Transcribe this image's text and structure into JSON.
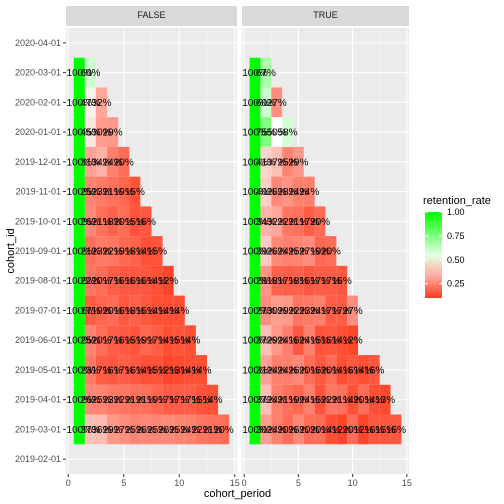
{
  "chart_data": {
    "type": "heatmap",
    "xlabel": "cohort_period",
    "ylabel": "cohort_id",
    "x_ticks": [
      "0",
      "5",
      "10",
      "15"
    ],
    "xlim": [
      0,
      15
    ],
    "cohorts": [
      "2019-02-01",
      "2019-03-01",
      "2019-04-01",
      "2019-05-01",
      "2019-06-01",
      "2019-07-01",
      "2019-08-01",
      "2019-09-01",
      "2019-10-01",
      "2019-11-01",
      "2019-12-01",
      "2020-01-01",
      "2020-02-01",
      "2020-03-01",
      "2020-04-01"
    ],
    "legend": {
      "title": "retention_rate",
      "ticks": [
        "1.00",
        "0.75",
        "0.50",
        "0.25"
      ],
      "low_color": "#ff3b1f",
      "mid_color": "#ffffff",
      "high_color": "#00ff00",
      "midpoint": 0.5,
      "range": [
        0.1,
        1.0
      ]
    },
    "panels": [
      {
        "name": "FALSE",
        "rows": [
          {
            "cohort": "2020-03-01",
            "values": [
              1.0,
              0.6
            ],
            "labels": [
              "100%",
              "60%"
            ]
          },
          {
            "cohort": "2020-02-01",
            "values": [
              1.0,
              0.47,
              0.32
            ],
            "labels": [
              "100%",
              "47%",
              "32%"
            ]
          },
          {
            "cohort": "2020-01-01",
            "values": [
              1.0,
              0.45,
              0.3,
              0.29
            ],
            "labels": [
              "100%",
              "45%",
              "30%",
              "29%"
            ]
          },
          {
            "cohort": "2019-12-01",
            "values": [
              1.0,
              0.31,
              0.34,
              0.24,
              0.2
            ],
            "labels": [
              "100%",
              "31%",
              "34%",
              "24%",
              "20%"
            ]
          },
          {
            "cohort": "2019-11-01",
            "values": [
              1.0,
              0.25,
              0.23,
              0.21,
              0.19,
              0.15
            ],
            "labels": [
              "100%",
              "25%",
              "23%",
              "21%",
              "19%",
              "15%"
            ]
          },
          {
            "cohort": "2019-10-01",
            "values": [
              1.0,
              0.26,
              0.21,
              0.18,
              0.2,
              0.15,
              0.16
            ],
            "labels": [
              "100%",
              "26%",
              "21%",
              "18%",
              "20%",
              "15%",
              "16%"
            ]
          },
          {
            "cohort": "2019-09-01",
            "values": [
              1.0,
              0.21,
              0.23,
              0.22,
              0.19,
              0.18,
              0.14,
              0.15
            ],
            "labels": [
              "100%",
              "21%",
              "23%",
              "22%",
              "19%",
              "18%",
              "14%",
              "15%"
            ]
          },
          {
            "cohort": "2019-08-01",
            "values": [
              1.0,
              0.22,
              0.2,
              0.17,
              0.16,
              0.16,
              0.16,
              0.14,
              0.12
            ],
            "labels": [
              "100%",
              "22%",
              "20%",
              "17%",
              "16%",
              "16%",
              "16%",
              "14%",
              "12%"
            ]
          },
          {
            "cohort": "2019-07-01",
            "values": [
              1.0,
              0.17,
              0.19,
              0.2,
              0.16,
              0.18,
              0.16,
              0.14,
              0.14,
              0.14
            ],
            "labels": [
              "100%",
              "17%",
              "19%",
              "20%",
              "16%",
              "18%",
              "16%",
              "14%",
              "14%",
              "14%"
            ]
          },
          {
            "cohort": "2019-06-01",
            "values": [
              1.0,
              0.25,
              0.2,
              0.17,
              0.16,
              0.15,
              0.19,
              0.17,
              0.14,
              0.15,
              0.14
            ],
            "labels": [
              "100%",
              "25%",
              "20%",
              "17%",
              "16%",
              "15%",
              "19%",
              "17%",
              "14%",
              "15%",
              "14%"
            ]
          },
          {
            "cohort": "2019-05-01",
            "values": [
              1.0,
              0.23,
              0.17,
              0.16,
              0.17,
              0.16,
              0.14,
              0.15,
              0.12,
              0.13,
              0.14,
              0.14
            ],
            "labels": [
              "100%",
              "23%",
              "17%",
              "16%",
              "17%",
              "16%",
              "14%",
              "15%",
              "12%",
              "13%",
              "14%",
              "14%"
            ]
          },
          {
            "cohort": "2019-04-01",
            "values": [
              1.0,
              0.26,
              0.25,
              0.23,
              0.22,
              0.21,
              0.21,
              0.19,
              0.17,
              0.17,
              0.17,
              0.15,
              0.14
            ],
            "labels": [
              "100%",
              "26%",
              "25%",
              "23%",
              "22%",
              "21%",
              "21%",
              "19%",
              "17%",
              "17%",
              "17%",
              "15%",
              "14%"
            ]
          },
          {
            "cohort": "2019-03-01",
            "values": [
              1.0,
              0.37,
              0.36,
              0.29,
              0.27,
              0.25,
              0.26,
              0.25,
              0.26,
              0.25,
              0.24,
              0.22,
              0.21,
              0.2
            ],
            "labels": [
              "100%",
              "37%",
              "36%",
              "29%",
              "27%",
              "25%",
              "26%",
              "25%",
              "26%",
              "25%",
              "24%",
              "22%",
              "21%",
              "20%"
            ]
          }
        ]
      },
      {
        "name": "TRUE",
        "rows": [
          {
            "cohort": "2020-03-01",
            "values": [
              1.0,
              0.67
            ],
            "labels": [
              "100%",
              "67%"
            ]
          },
          {
            "cohort": "2020-02-01",
            "values": [
              1.0,
              0.6,
              0.27
            ],
            "labels": [
              "100%",
              "60%",
              "27%"
            ]
          },
          {
            "cohort": "2020-01-01",
            "values": [
              1.0,
              0.75,
              0.5,
              0.58
            ],
            "labels": [
              "100%",
              "75%",
              "50%",
              "58%"
            ]
          },
          {
            "cohort": "2019-12-01",
            "values": [
              1.0,
              0.41,
              0.37,
              0.25,
              0.29
            ],
            "labels": [
              "100%",
              "41%",
              "37%",
              "25%",
              "29%"
            ]
          },
          {
            "cohort": "2019-11-01",
            "values": [
              1.0,
              0.4,
              0.26,
              0.28,
              0.24,
              0.24
            ],
            "labels": [
              "100%",
              "40%",
              "26%",
              "28%",
              "24%",
              "24%"
            ]
          },
          {
            "cohort": "2019-10-01",
            "values": [
              1.0,
              0.34,
              0.32,
              0.22,
              0.21,
              0.17,
              0.2
            ],
            "labels": [
              "100%",
              "34%",
              "32%",
              "22%",
              "21%",
              "17%",
              "20%"
            ]
          },
          {
            "cohort": "2019-09-01",
            "values": [
              1.0,
              0.39,
              0.26,
              0.24,
              0.25,
              0.27,
              0.19,
              0.2
            ],
            "labels": [
              "100%",
              "39%",
              "26%",
              "24%",
              "25%",
              "27%",
              "19%",
              "20%"
            ]
          },
          {
            "cohort": "2019-08-01",
            "values": [
              1.0,
              0.28,
              0.18,
              0.17,
              0.18,
              0.16,
              0.17,
              0.17,
              0.16
            ],
            "labels": [
              "100%",
              "28%",
              "18%",
              "17%",
              "18%",
              "16%",
              "17%",
              "17%",
              "16%"
            ]
          },
          {
            "cohort": "2019-07-01",
            "values": [
              1.0,
              0.27,
              0.3,
              0.29,
              0.22,
              0.23,
              0.24,
              0.17,
              0.17,
              0.27
            ],
            "labels": [
              "100%",
              "27%",
              "30%",
              "29%",
              "22%",
              "23%",
              "24%",
              "17%",
              "17%",
              "27%"
            ]
          },
          {
            "cohort": "2019-06-01",
            "values": [
              1.0,
              0.37,
              0.29,
              0.24,
              0.16,
              0.24,
              0.15,
              0.16,
              0.14,
              0.12
            ],
            "labels": [
              "100%",
              "37%",
              "29%",
              "24%",
              "16%",
              "24%",
              "15%",
              "16%",
              "14%",
              "12%"
            ]
          },
          {
            "cohort": "2019-05-01",
            "values": [
              1.0,
              0.31,
              0.24,
              0.24,
              0.26,
              0.2,
              0.16,
              0.2,
              0.14,
              0.16,
              0.14,
              0.16
            ],
            "labels": [
              "100%",
              "31%",
              "24%",
              "24%",
              "26%",
              "20%",
              "16%",
              "20%",
              "14%",
              "16%",
              "14%",
              "16%"
            ]
          },
          {
            "cohort": "2019-04-01",
            "values": [
              1.0,
              0.37,
              0.24,
              0.21,
              0.19,
              0.24,
              0.15,
              0.22,
              0.21,
              0.14,
              0.2,
              0.14,
              0.13
            ],
            "labels": [
              "100%",
              "37%",
              "24%",
              "21%",
              "19%",
              "24%",
              "15%",
              "22%",
              "21%",
              "14%",
              "20%",
              "14%",
              "13%"
            ]
          },
          {
            "cohort": "2019-03-01",
            "values": [
              1.0,
              0.3,
              0.24,
              0.2,
              0.26,
              0.2,
              0.2,
              0.14,
              0.12,
              0.2,
              0.12,
              0.16,
              0.16,
              0.16
            ],
            "labels": [
              "100%",
              "30%",
              "24%",
              "20%",
              "26%",
              "20%",
              "20%",
              "14%",
              "12%",
              "20%",
              "12%",
              "16%",
              "16%",
              "16%"
            ]
          }
        ]
      }
    ]
  }
}
